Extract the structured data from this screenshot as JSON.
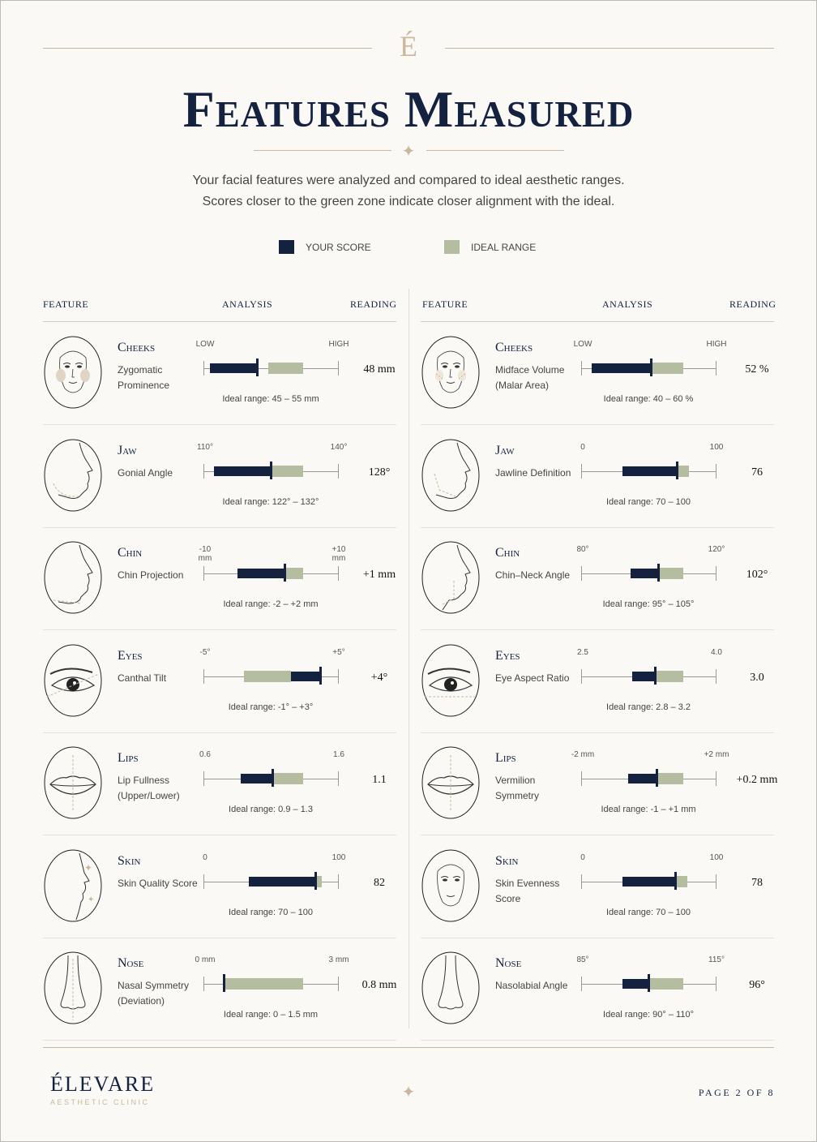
{
  "logo_mark": "É",
  "title": "Features Measured",
  "intro": [
    "Your facial features were analyzed and compared to ideal aesthetic ranges.",
    "Scores closer to the green zone indicate closer alignment with the ideal."
  ],
  "legend": {
    "score": {
      "label": "YOUR SCORE",
      "color": "#14213f"
    },
    "ideal": {
      "label": "IDEAL RANGE",
      "color": "#b4bd9f"
    }
  },
  "headers": {
    "feature": "FEATURE",
    "analysis": "ANALYSIS",
    "reading": "READING"
  },
  "columns": [
    [
      {
        "name": "Cheeks",
        "desc": "Zygomatic Prominence",
        "icon": "face-front-cheeks-icon",
        "min": "LOW",
        "max": "HIGH",
        "ideal": "Ideal range: 45 – 55 mm",
        "reading": "48 mm",
        "ideal_range": [
          0.48,
          0.74
        ],
        "score_range": [
          0.05,
          0.4
        ],
        "marker": 0.4
      },
      {
        "name": "Jaw",
        "desc": "Gonial Angle",
        "icon": "face-profile-jaw-icon",
        "min": "110°",
        "max": "140°",
        "ideal": "Ideal range: 122° – 132°",
        "reading": "128°",
        "ideal_range": [
          0.5,
          0.74
        ],
        "score_range": [
          0.08,
          0.5
        ],
        "marker": 0.5
      },
      {
        "name": "Chin",
        "desc": "Chin Projection",
        "icon": "face-profile-chin-icon",
        "min": "-10 mm",
        "max": "+10 mm",
        "ideal": "Ideal range: -2 – +2 mm",
        "reading": "+1 mm",
        "ideal_range": [
          0.6,
          0.74
        ],
        "score_range": [
          0.25,
          0.6
        ],
        "marker": 0.6
      },
      {
        "name": "Eyes",
        "desc": "Canthal Tilt",
        "icon": "eye-icon",
        "min": "-5°",
        "max": "+5°",
        "ideal": "Ideal range: -1° – +3°",
        "reading": "+4°",
        "ideal_range": [
          0.3,
          0.65
        ],
        "score_range": [
          0.65,
          0.87
        ],
        "marker": 0.87
      },
      {
        "name": "Lips",
        "desc": "Lip Fullness (Upper/Lower)",
        "icon": "lips-icon",
        "min": "0.6",
        "max": "1.6",
        "ideal": "Ideal range: 0.9 – 1.3",
        "reading": "1.1",
        "ideal_range": [
          0.51,
          0.74
        ],
        "score_range": [
          0.28,
          0.51
        ],
        "marker": 0.51
      },
      {
        "name": "Skin",
        "desc": "Skin Quality Score",
        "icon": "face-profile-skin-icon",
        "min": "0",
        "max": "100",
        "ideal": "Ideal range: 70 – 100",
        "reading": "82",
        "ideal_range": [
          0.83,
          0.88
        ],
        "score_range": [
          0.34,
          0.83
        ],
        "marker": 0.83
      },
      {
        "name": "Nose",
        "desc": "Nasal Symmetry (Deviation)",
        "icon": "nose-icon",
        "min": "0 mm",
        "max": "3 mm",
        "ideal": "Ideal range: 0 – 1.5 mm",
        "reading": "0.8 mm",
        "ideal_range": [
          0.16,
          0.74
        ],
        "score_range": [
          0.15,
          0.16
        ],
        "marker": 0.15
      }
    ],
    [
      {
        "name": "Cheeks",
        "desc": "Midface Volume (Malar Area)",
        "icon": "face-front-malar-icon",
        "min": "LOW",
        "max": "HIGH",
        "ideal": "Ideal range: 40 – 60 %",
        "reading": "52 %",
        "ideal_range": [
          0.52,
          0.76
        ],
        "score_range": [
          0.08,
          0.52
        ],
        "marker": 0.52
      },
      {
        "name": "Jaw",
        "desc": "Jawline Definition",
        "icon": "face-profile-jawline-icon",
        "min": "0",
        "max": "100",
        "ideal": "Ideal range: 70 – 100",
        "reading": "76",
        "ideal_range": [
          0.71,
          0.8
        ],
        "score_range": [
          0.31,
          0.71
        ],
        "marker": 0.71
      },
      {
        "name": "Chin",
        "desc": "Chin–Neck Angle",
        "icon": "face-profile-neck-icon",
        "min": "80°",
        "max": "120°",
        "ideal": "Ideal range: 95° – 105°",
        "reading": "102°",
        "ideal_range": [
          0.57,
          0.76
        ],
        "score_range": [
          0.37,
          0.57
        ],
        "marker": 0.57
      },
      {
        "name": "Eyes",
        "desc": "Eye Aspect Ratio",
        "icon": "eye-aspect-icon",
        "min": "2.5",
        "max": "4.0",
        "ideal": "Ideal range: 2.8 – 3.2",
        "reading": "3.0",
        "ideal_range": [
          0.55,
          0.76
        ],
        "score_range": [
          0.38,
          0.55
        ],
        "marker": 0.55
      },
      {
        "name": "Lips",
        "desc": "Vermilion Symmetry",
        "icon": "lips-symmetry-icon",
        "min": "-2 mm",
        "max": "+2 mm",
        "ideal": "Ideal range: -1 – +1 mm",
        "reading": "+0.2 mm",
        "ideal_range": [
          0.56,
          0.76
        ],
        "score_range": [
          0.35,
          0.56
        ],
        "marker": 0.56
      },
      {
        "name": "Skin",
        "desc": "Skin Evenness Score",
        "icon": "face-front-skin-icon",
        "min": "0",
        "max": "100",
        "ideal": "Ideal range: 70 – 100",
        "reading": "78",
        "ideal_range": [
          0.7,
          0.79
        ],
        "score_range": [
          0.31,
          0.7
        ],
        "marker": 0.7
      },
      {
        "name": "Nose",
        "desc": "Nasolabial Angle",
        "icon": "nose-front-icon",
        "min": "85°",
        "max": "115°",
        "ideal": "Ideal range: 90° – 110°",
        "reading": "96°",
        "ideal_range": [
          0.5,
          0.76
        ],
        "score_range": [
          0.31,
          0.5
        ],
        "marker": 0.5
      }
    ]
  ],
  "footer": {
    "brand": "ÉLEVARE",
    "brand_sub": "AESTHETIC CLINIC",
    "page": "PAGE 2 OF 8"
  }
}
